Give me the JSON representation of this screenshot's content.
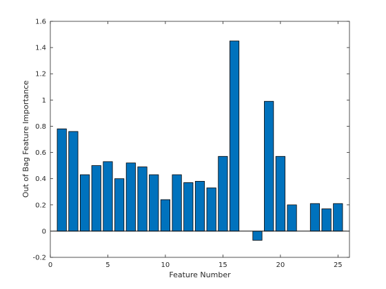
{
  "chart_data": {
    "type": "bar",
    "title": "",
    "xlabel": "Feature Number",
    "ylabel": "Out of Bag Feature Importance",
    "xlim": [
      0,
      26
    ],
    "ylim": [
      -0.2,
      1.6
    ],
    "xticks": [
      0,
      5,
      10,
      15,
      20,
      25
    ],
    "yticks": [
      -0.2,
      0,
      0.2,
      0.4,
      0.6,
      0.8,
      1,
      1.2,
      1.4,
      1.6
    ],
    "ytick_labels": [
      "-0.2",
      "0",
      "0.2",
      "0.4",
      "0.6",
      "0.8",
      "1",
      "1.2",
      "1.4",
      "1.6"
    ],
    "grid": false,
    "bar_color": "#0072BD",
    "categories": [
      1,
      2,
      3,
      4,
      5,
      6,
      7,
      8,
      9,
      10,
      11,
      12,
      13,
      14,
      15,
      16,
      17,
      18,
      19,
      20,
      21,
      22,
      23,
      24,
      25
    ],
    "values": [
      0.78,
      0.76,
      0.43,
      0.5,
      0.53,
      0.4,
      0.52,
      0.49,
      0.43,
      0.24,
      0.43,
      0.37,
      0.38,
      0.33,
      0.57,
      1.45,
      0.0,
      -0.07,
      0.99,
      0.57,
      0.2,
      0.0,
      0.21,
      0.17,
      0.21
    ]
  }
}
